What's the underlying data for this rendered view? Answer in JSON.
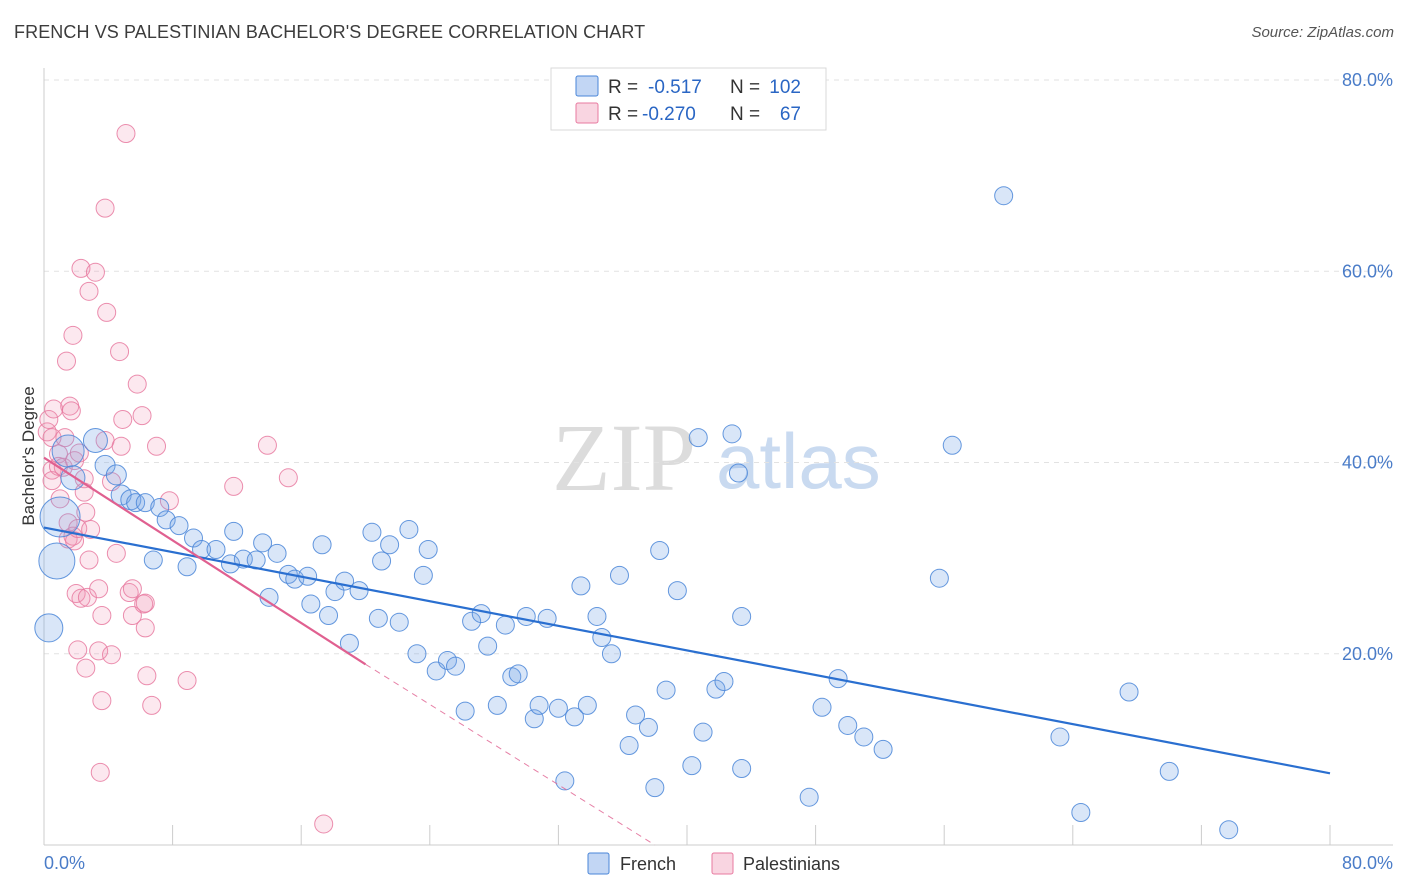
{
  "title": "FRENCH VS PALESTINIAN BACHELOR'S DEGREE CORRELATION CHART",
  "source": "Source: ZipAtlas.com",
  "colors": {
    "french": "#4a86d8",
    "french_fill": "rgba(120,165,230,0.28)",
    "french_line": "#2a6fd0",
    "palestinian": "#e87aa0",
    "palestinian_fill": "rgba(240,150,180,0.22)",
    "palestinian_line": "#e06090",
    "grid": "#e2e2e2",
    "axis_label": "#4a7cc8"
  },
  "legend": {
    "rows": [
      {
        "r_label": "R =",
        "r_value": "-0.517",
        "n_label": "N =",
        "n_value": "102"
      },
      {
        "r_label": "R =",
        "r_value": "-0.270",
        "n_label": "N =",
        "n_value": "67"
      }
    ]
  },
  "bottom_legend": {
    "french": "French",
    "palestinians": "Palestinians"
  },
  "watermark": {
    "zip": "ZIP",
    "atlas": "atlas"
  },
  "chart_data": {
    "type": "scatter",
    "title": "FRENCH VS PALESTINIAN BACHELOR'S DEGREE CORRELATION CHART",
    "xlabel": "",
    "ylabel": "Bachelor's Degree",
    "xlim": [
      0,
      80
    ],
    "ylim": [
      0,
      80
    ],
    "x_tick_labels": [
      "0.0%",
      "80.0%"
    ],
    "y_tick_labels": [
      {
        "value": 20,
        "label": "20.0%"
      },
      {
        "value": 40,
        "label": "40.0%"
      },
      {
        "value": 60,
        "label": "60.0%"
      },
      {
        "value": 80,
        "label": "80.0%"
      }
    ],
    "series": [
      {
        "name": "French",
        "r": -0.517,
        "n": 102,
        "trend": {
          "x": [
            0,
            80
          ],
          "y": [
            33.2,
            7.5
          ]
        },
        "points": [
          [
            0.3,
            22.7,
            14
          ],
          [
            0.8,
            29.7,
            18
          ],
          [
            1.0,
            34.3,
            20
          ],
          [
            1.5,
            41.2,
            16
          ],
          [
            1.8,
            38.4,
            12
          ],
          [
            3.2,
            42.3,
            12
          ],
          [
            3.8,
            39.7,
            10
          ],
          [
            4.5,
            38.7,
            10
          ],
          [
            4.8,
            36.6,
            10
          ],
          [
            5.4,
            36.1,
            10
          ],
          [
            5.7,
            35.8,
            9
          ],
          [
            6.3,
            35.8,
            9
          ],
          [
            7.2,
            35.3,
            9
          ],
          [
            7.6,
            34.0,
            9
          ],
          [
            8.4,
            33.4,
            9
          ],
          [
            6.8,
            29.8,
            9
          ],
          [
            8.9,
            29.1,
            9
          ],
          [
            9.3,
            32.1,
            9
          ],
          [
            9.8,
            30.9,
            9
          ],
          [
            10.7,
            30.9,
            9
          ],
          [
            11.6,
            29.4,
            9
          ],
          [
            11.8,
            32.8,
            9
          ],
          [
            12.4,
            29.9,
            9
          ],
          [
            13.2,
            29.8,
            9
          ],
          [
            13.6,
            31.6,
            9
          ],
          [
            14.0,
            25.9,
            9
          ],
          [
            14.5,
            30.5,
            9
          ],
          [
            15.2,
            28.3,
            9
          ],
          [
            15.6,
            27.8,
            9
          ],
          [
            16.4,
            28.1,
            9
          ],
          [
            16.6,
            25.2,
            9
          ],
          [
            17.3,
            31.4,
            9
          ],
          [
            17.7,
            24.0,
            9
          ],
          [
            18.1,
            26.5,
            9
          ],
          [
            18.7,
            27.6,
            9
          ],
          [
            19.0,
            21.1,
            9
          ],
          [
            19.6,
            26.6,
            9
          ],
          [
            20.4,
            32.7,
            9
          ],
          [
            20.8,
            23.7,
            9
          ],
          [
            21.0,
            29.7,
            9
          ],
          [
            21.5,
            31.4,
            9
          ],
          [
            22.1,
            23.3,
            9
          ],
          [
            22.7,
            33.0,
            9
          ],
          [
            23.2,
            20.0,
            9
          ],
          [
            23.6,
            28.2,
            9
          ],
          [
            23.9,
            30.9,
            9
          ],
          [
            24.4,
            18.2,
            9
          ],
          [
            25.1,
            19.3,
            9
          ],
          [
            25.6,
            18.7,
            9
          ],
          [
            26.2,
            14.0,
            9
          ],
          [
            26.6,
            23.4,
            9
          ],
          [
            27.2,
            24.2,
            9
          ],
          [
            27.6,
            20.8,
            9
          ],
          [
            28.2,
            14.6,
            9
          ],
          [
            28.7,
            23.0,
            9
          ],
          [
            29.1,
            17.6,
            9
          ],
          [
            29.5,
            17.9,
            9
          ],
          [
            30.0,
            23.9,
            9
          ],
          [
            30.5,
            13.2,
            9
          ],
          [
            30.8,
            14.6,
            9
          ],
          [
            31.3,
            23.7,
            9
          ],
          [
            32.0,
            14.3,
            9
          ],
          [
            32.4,
            6.7,
            9
          ],
          [
            33.0,
            13.4,
            9
          ],
          [
            33.4,
            27.1,
            9
          ],
          [
            33.8,
            14.6,
            9
          ],
          [
            34.4,
            23.9,
            9
          ],
          [
            34.7,
            21.7,
            9
          ],
          [
            35.3,
            20.0,
            9
          ],
          [
            35.8,
            28.2,
            9
          ],
          [
            36.4,
            10.4,
            9
          ],
          [
            36.8,
            13.6,
            9
          ],
          [
            37.6,
            12.3,
            9
          ],
          [
            38.0,
            6.0,
            9
          ],
          [
            38.3,
            30.8,
            9
          ],
          [
            38.7,
            16.2,
            9
          ],
          [
            39.4,
            26.6,
            9
          ],
          [
            40.3,
            8.3,
            9
          ],
          [
            40.7,
            42.6,
            9
          ],
          [
            41.0,
            11.8,
            9
          ],
          [
            41.8,
            16.3,
            9
          ],
          [
            42.3,
            17.1,
            9
          ],
          [
            42.8,
            43.0,
            9
          ],
          [
            43.2,
            38.9,
            9
          ],
          [
            43.4,
            8.0,
            9
          ],
          [
            43.4,
            23.9,
            9
          ],
          [
            47.6,
            5.0,
            9
          ],
          [
            48.4,
            14.4,
            9
          ],
          [
            49.4,
            17.4,
            9
          ],
          [
            50.0,
            12.5,
            9
          ],
          [
            51.0,
            11.3,
            9
          ],
          [
            52.2,
            10.0,
            9
          ],
          [
            55.7,
            27.9,
            9
          ],
          [
            56.5,
            41.8,
            9
          ],
          [
            59.7,
            67.9,
            9
          ],
          [
            63.2,
            11.3,
            9
          ],
          [
            64.5,
            3.4,
            9
          ],
          [
            67.5,
            16.0,
            9
          ],
          [
            70.0,
            7.7,
            9
          ],
          [
            73.7,
            1.6,
            9
          ]
        ]
      },
      {
        "name": "Palestinians",
        "r": -0.27,
        "n": 67,
        "trend": {
          "x": [
            0,
            20
          ],
          "y": [
            40.5,
            18.9
          ]
        },
        "trend_extension": {
          "x": [
            20,
            38
          ],
          "y": [
            18.9,
            0
          ]
        },
        "points": [
          [
            0.2,
            43.2,
            9
          ],
          [
            0.3,
            44.5,
            9
          ],
          [
            0.5,
            42.6,
            9
          ],
          [
            0.5,
            39.2,
            9
          ],
          [
            0.5,
            38.1,
            9
          ],
          [
            0.6,
            45.6,
            9
          ],
          [
            0.9,
            40.9,
            9
          ],
          [
            0.9,
            39.6,
            9
          ],
          [
            1.0,
            36.2,
            9
          ],
          [
            1.2,
            39.5,
            9
          ],
          [
            1.3,
            42.6,
            9
          ],
          [
            1.4,
            50.6,
            9
          ],
          [
            1.5,
            32.0,
            9
          ],
          [
            1.5,
            33.7,
            9
          ],
          [
            1.6,
            45.9,
            9
          ],
          [
            1.7,
            45.4,
            9
          ],
          [
            1.8,
            53.3,
            9
          ],
          [
            1.8,
            32.3,
            9
          ],
          [
            1.9,
            31.8,
            9
          ],
          [
            1.9,
            40.2,
            9
          ],
          [
            2.0,
            26.3,
            9
          ],
          [
            2.1,
            20.4,
            9
          ],
          [
            2.1,
            33.1,
            9
          ],
          [
            2.3,
            25.8,
            9
          ],
          [
            2.3,
            60.3,
            9
          ],
          [
            2.5,
            38.3,
            9
          ],
          [
            2.5,
            36.9,
            9
          ],
          [
            2.6,
            34.8,
            9
          ],
          [
            2.6,
            18.5,
            9
          ],
          [
            2.7,
            25.9,
            9
          ],
          [
            2.8,
            57.9,
            9
          ],
          [
            2.8,
            29.8,
            9
          ],
          [
            2.9,
            33.0,
            9
          ],
          [
            3.2,
            59.9,
            9
          ],
          [
            3.4,
            26.8,
            9
          ],
          [
            3.4,
            20.3,
            9
          ],
          [
            3.5,
            7.6,
            9
          ],
          [
            3.6,
            15.1,
            9
          ],
          [
            3.6,
            24.0,
            9
          ],
          [
            3.8,
            66.6,
            9
          ],
          [
            3.8,
            42.3,
            9
          ],
          [
            3.9,
            55.7,
            9
          ],
          [
            4.2,
            19.9,
            9
          ],
          [
            4.5,
            30.5,
            9
          ],
          [
            4.7,
            51.6,
            9
          ],
          [
            4.8,
            41.7,
            9
          ],
          [
            4.9,
            44.5,
            9
          ],
          [
            5.1,
            74.4,
            9
          ],
          [
            5.3,
            26.4,
            9
          ],
          [
            5.5,
            26.8,
            9
          ],
          [
            5.5,
            24.0,
            9
          ],
          [
            5.8,
            48.2,
            9
          ],
          [
            6.1,
            44.9,
            9
          ],
          [
            6.2,
            25.2,
            9
          ],
          [
            6.3,
            25.3,
            9
          ],
          [
            6.3,
            22.7,
            9
          ],
          [
            6.4,
            17.7,
            9
          ],
          [
            6.7,
            14.6,
            9
          ],
          [
            7.0,
            41.7,
            9
          ],
          [
            7.8,
            36.0,
            9
          ],
          [
            8.9,
            17.2,
            9
          ],
          [
            11.8,
            37.5,
            9
          ],
          [
            13.9,
            41.8,
            9
          ],
          [
            15.2,
            38.4,
            9
          ],
          [
            17.4,
            2.2,
            9
          ],
          [
            2.2,
            41.0,
            9
          ],
          [
            4.2,
            38.0,
            9
          ]
        ]
      }
    ]
  }
}
